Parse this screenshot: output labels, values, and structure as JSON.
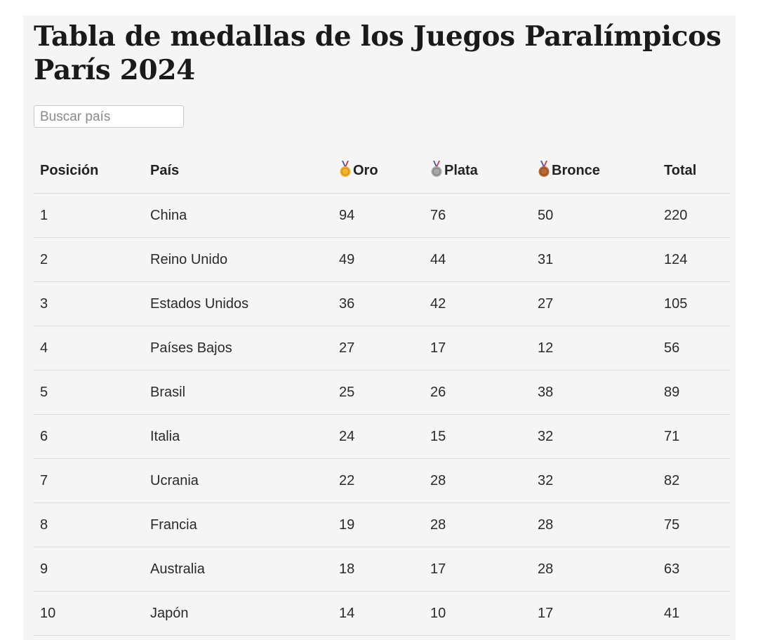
{
  "page": {
    "title": "Tabla de medallas de los Juegos Paralímpicos París 2024",
    "search_placeholder": "Buscar país"
  },
  "table": {
    "headers": {
      "position": "Posición",
      "country": "País",
      "gold": "Oro",
      "silver": "Plata",
      "bronze": "Bronce",
      "total": "Total"
    },
    "medal_icons": {
      "gold": "gold-medal-icon",
      "silver": "silver-medal-icon",
      "bronze": "bronze-medal-icon"
    },
    "rows": [
      {
        "position": "1",
        "country": "China",
        "gold": "94",
        "silver": "76",
        "bronze": "50",
        "total": "220"
      },
      {
        "position": "2",
        "country": "Reino Unido",
        "gold": "49",
        "silver": "44",
        "bronze": "31",
        "total": "124"
      },
      {
        "position": "3",
        "country": "Estados Unidos",
        "gold": "36",
        "silver": "42",
        "bronze": "27",
        "total": "105"
      },
      {
        "position": "4",
        "country": "Países Bajos",
        "gold": "27",
        "silver": "17",
        "bronze": "12",
        "total": "56"
      },
      {
        "position": "5",
        "country": "Brasil",
        "gold": "25",
        "silver": "26",
        "bronze": "38",
        "total": "89"
      },
      {
        "position": "6",
        "country": "Italia",
        "gold": "24",
        "silver": "15",
        "bronze": "32",
        "total": "71"
      },
      {
        "position": "7",
        "country": "Ucrania",
        "gold": "22",
        "silver": "28",
        "bronze": "32",
        "total": "82"
      },
      {
        "position": "8",
        "country": "Francia",
        "gold": "19",
        "silver": "28",
        "bronze": "28",
        "total": "75"
      },
      {
        "position": "9",
        "country": "Australia",
        "gold": "18",
        "silver": "17",
        "bronze": "28",
        "total": "63"
      },
      {
        "position": "10",
        "country": "Japón",
        "gold": "14",
        "silver": "10",
        "bronze": "17",
        "total": "41"
      }
    ]
  },
  "colors": {
    "gold": "#f0b52c",
    "silver": "#a8a8a8",
    "bronze": "#b86a32",
    "ribbon_blue": "#3d5ba9",
    "ribbon_red": "#d23a3a"
  }
}
